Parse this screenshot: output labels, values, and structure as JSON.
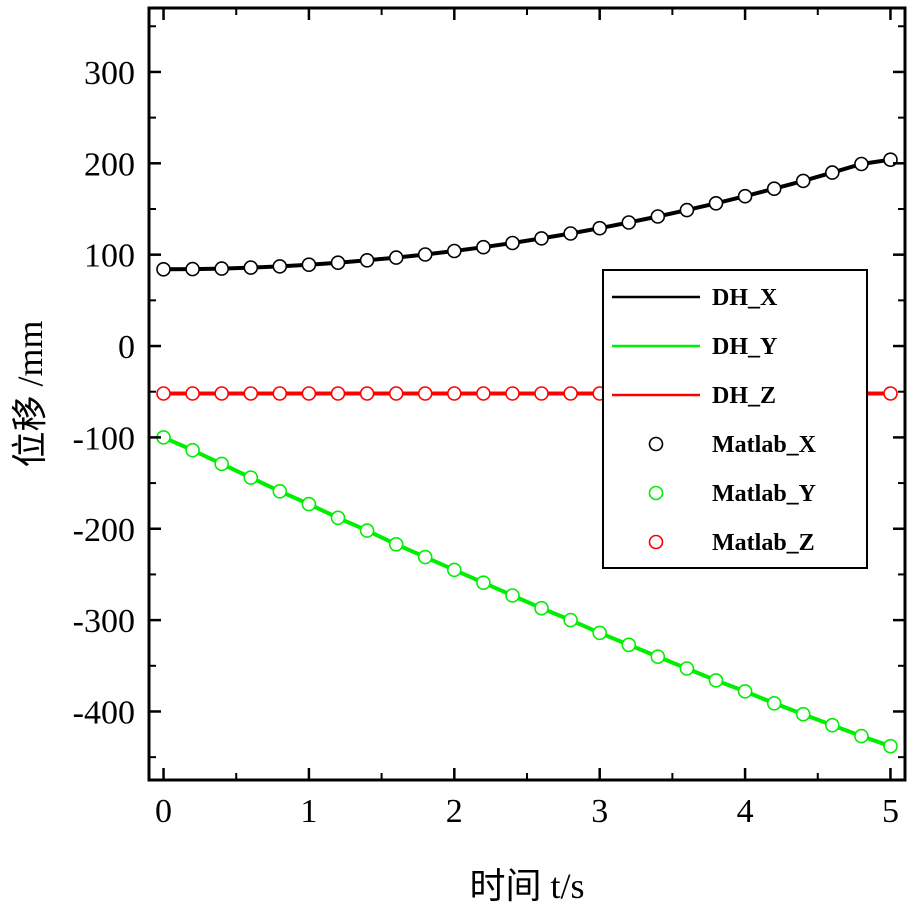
{
  "chart_data": {
    "type": "line",
    "xlabel": "时间 t/s",
    "ylabel": "位移 /mm",
    "xlim": [
      -0.1,
      5.1
    ],
    "ylim": [
      -475,
      370
    ],
    "xticks": [
      0,
      1,
      2,
      3,
      4,
      5
    ],
    "yticks": [
      300,
      200,
      100,
      0,
      -100,
      -200,
      -300,
      -400
    ],
    "grid": false,
    "legend_position": "right",
    "x": [
      0,
      0.2,
      0.4,
      0.6,
      0.8,
      1.0,
      1.2,
      1.4,
      1.6,
      1.8,
      2.0,
      2.2,
      2.4,
      2.6,
      2.8,
      3.0,
      3.2,
      3.4,
      3.6,
      3.8,
      4.0,
      4.2,
      4.4,
      4.6,
      4.8,
      5.0
    ],
    "series": [
      {
        "name": "DH_X",
        "kind": "line",
        "color": "#000000",
        "values": [
          84,
          84.2,
          84.8,
          85.8,
          87.2,
          89,
          91.2,
          93.8,
          96.8,
          100.2,
          104,
          108.2,
          112.8,
          117.8,
          123.2,
          129,
          135.2,
          141.8,
          148.8,
          156.2,
          164,
          172.2,
          180.8,
          189.8,
          199.2,
          204
        ]
      },
      {
        "name": "DH_Y",
        "kind": "line",
        "color": "#00ee00",
        "values": [
          -100,
          -114,
          -129,
          -144,
          -159,
          -173,
          -188,
          -202,
          -217,
          -231,
          -245,
          -259,
          -273,
          -287,
          -300,
          -314,
          -327,
          -340,
          -353,
          -366,
          -378,
          -391,
          -403,
          -415,
          -427,
          -438
        ]
      },
      {
        "name": "DH_Z",
        "kind": "line",
        "color": "#ff0000",
        "values": [
          -52,
          -52,
          -52,
          -52,
          -52,
          -52,
          -52,
          -52,
          -52,
          -52,
          -52,
          -52,
          -52,
          -52,
          -52,
          -52,
          -52,
          -52,
          -52,
          -52,
          -52,
          -52,
          -52,
          -52,
          -52,
          -52
        ]
      },
      {
        "name": "Matlab_X",
        "kind": "marker",
        "color": "#000000",
        "values": [
          84,
          84.2,
          84.8,
          85.8,
          87.2,
          89,
          91.2,
          93.8,
          96.8,
          100.2,
          104,
          108.2,
          112.8,
          117.8,
          123.2,
          129,
          135.2,
          141.8,
          148.8,
          156.2,
          164,
          172.2,
          180.8,
          189.8,
          199.2,
          204
        ]
      },
      {
        "name": "Matlab_Y",
        "kind": "marker",
        "color": "#00ee00",
        "values": [
          -100,
          -114,
          -129,
          -144,
          -159,
          -173,
          -188,
          -202,
          -217,
          -231,
          -245,
          -259,
          -273,
          -287,
          -300,
          -314,
          -327,
          -340,
          -353,
          -366,
          -378,
          -391,
          -403,
          -415,
          -427,
          -438
        ]
      },
      {
        "name": "Matlab_Z",
        "kind": "marker",
        "color": "#ff0000",
        "values": [
          -52,
          -52,
          -52,
          -52,
          -52,
          -52,
          -52,
          -52,
          -52,
          -52,
          -52,
          -52,
          -52,
          -52,
          -52,
          -52,
          -52,
          -52,
          -52,
          -52,
          -52,
          -52,
          -52,
          -52,
          -52,
          -52
        ]
      }
    ]
  }
}
